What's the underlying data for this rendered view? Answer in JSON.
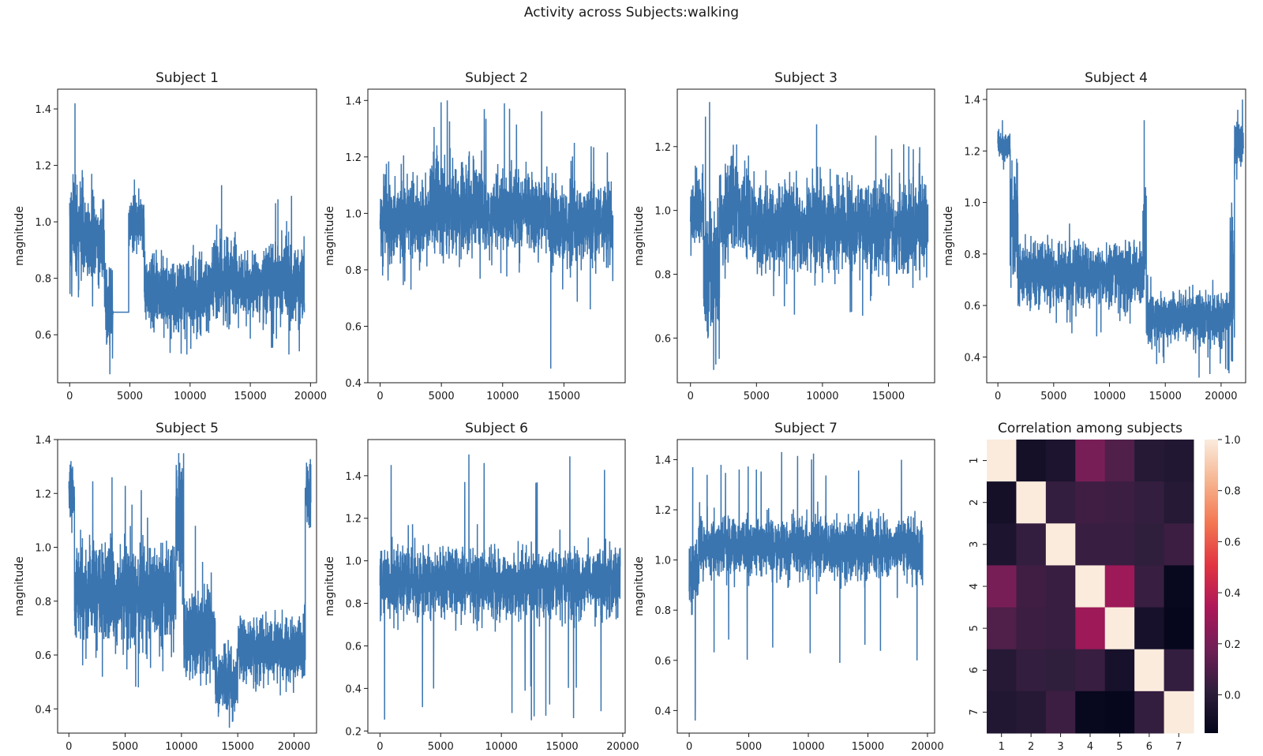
{
  "figure_title": "Activity across Subjects:walking",
  "line_color": "#3a75b0",
  "chart_data": [
    {
      "type": "line",
      "title": "Subject 1",
      "ylabel": "magnitude",
      "xlim": [
        -1000,
        20500
      ],
      "ylim": [
        0.43,
        1.47
      ],
      "xticks": [
        0,
        5000,
        10000,
        15000,
        20000
      ],
      "yticks": [
        0.6,
        0.8,
        1.0,
        1.2,
        1.4
      ],
      "ytick_format": "1",
      "n_points": 19500,
      "segments": [
        {
          "x": [
            0,
            1200
          ],
          "mean": 0.98,
          "spread": 0.09,
          "peak": 1.42
        },
        {
          "x": [
            1200,
            2900
          ],
          "mean": 0.92,
          "spread": 0.08,
          "peak": 1.17
        },
        {
          "x": [
            2900,
            3600
          ],
          "mean": 0.7,
          "spread": 0.08,
          "dip": 0.46
        },
        {
          "x": [
            3600,
            4900
          ],
          "constant": 0.68
        },
        {
          "x": [
            4900,
            6200
          ],
          "mean": 0.99,
          "spread": 0.05,
          "peak": 1.15
        },
        {
          "x": [
            6200,
            11800
          ],
          "mean": 0.75,
          "spread": 0.06,
          "dip": 0.53
        },
        {
          "x": [
            11800,
            14000
          ],
          "mean": 0.8,
          "spread": 0.07,
          "peak": 1.13
        },
        {
          "x": [
            14000,
            16000
          ],
          "mean": 0.78,
          "spread": 0.06
        },
        {
          "x": [
            16000,
            19500
          ],
          "mean": 0.78,
          "spread": 0.07,
          "peak": 1.08,
          "dip": 0.53
        }
      ]
    },
    {
      "type": "line",
      "title": "Subject 2",
      "ylabel": "magnitude",
      "xlim": [
        -1000,
        20000
      ],
      "ylim": [
        0.4,
        1.44
      ],
      "xticks": [
        0,
        5000,
        10000,
        15000
      ],
      "yticks": [
        0.4,
        0.6,
        0.8,
        1.0,
        1.2,
        1.4
      ],
      "ytick_format": "1",
      "n_points": 19000,
      "segments": [
        {
          "x": [
            0,
            4000
          ],
          "mean": 0.98,
          "spread": 0.07,
          "dip": 0.73
        },
        {
          "x": [
            4000,
            8000
          ],
          "mean": 1.02,
          "spread": 0.08,
          "peak": 1.4
        },
        {
          "x": [
            8000,
            13800
          ],
          "mean": 1.0,
          "spread": 0.07,
          "peak": 1.39
        },
        {
          "x": [
            13800,
            14000
          ],
          "mean": 0.95,
          "spread": 0.05,
          "dip": 0.45
        },
        {
          "x": [
            14000,
            19000
          ],
          "mean": 0.96,
          "spread": 0.07,
          "peak": 1.25,
          "dip": 0.66
        }
      ]
    },
    {
      "type": "line",
      "title": "Subject 3",
      "ylabel": "magnitude",
      "xlim": [
        -1000,
        18500
      ],
      "ylim": [
        0.46,
        1.38
      ],
      "xticks": [
        0,
        5000,
        10000,
        15000
      ],
      "yticks": [
        0.6,
        0.8,
        1.0,
        1.2
      ],
      "ytick_format": "1",
      "n_points": 18000,
      "segments": [
        {
          "x": [
            0,
            1000
          ],
          "mean": 1.0,
          "spread": 0.05,
          "peak": 1.14
        },
        {
          "x": [
            1000,
            2200
          ],
          "mean": 0.82,
          "spread": 0.1,
          "dip": 0.5,
          "peak": 1.34
        },
        {
          "x": [
            2200,
            4600
          ],
          "mean": 1.0,
          "spread": 0.07,
          "peak": 1.17
        },
        {
          "x": [
            4600,
            18000
          ],
          "mean": 0.95,
          "spread": 0.07,
          "peak": 1.27,
          "dip": 0.67
        }
      ]
    },
    {
      "type": "line",
      "title": "Subject 4",
      "ylabel": "magnitude",
      "xlim": [
        -1000,
        22200
      ],
      "ylim": [
        0.3,
        1.44
      ],
      "xticks": [
        0,
        5000,
        10000,
        15000,
        20000
      ],
      "yticks": [
        0.4,
        0.6,
        0.8,
        1.0,
        1.2,
        1.4
      ],
      "ytick_format": "1",
      "n_points": 22000,
      "segments": [
        {
          "x": [
            0,
            1100
          ],
          "mean": 1.22,
          "spread": 0.03,
          "peak": 1.32
        },
        {
          "x": [
            1100,
            1800
          ],
          "mean": 0.95,
          "spread": 0.1
        },
        {
          "x": [
            1800,
            13000
          ],
          "mean": 0.72,
          "spread": 0.06,
          "dip": 0.48
        },
        {
          "x": [
            13000,
            13300
          ],
          "mean": 0.9,
          "spread": 0.1,
          "peak": 1.32
        },
        {
          "x": [
            13300,
            20800
          ],
          "mean": 0.55,
          "spread": 0.05,
          "dip": 0.32
        },
        {
          "x": [
            20800,
            21200
          ],
          "mean": 0.7,
          "spread": 0.15,
          "peak": 1.0
        },
        {
          "x": [
            21200,
            22000
          ],
          "mean": 1.22,
          "spread": 0.05,
          "peak": 1.36
        }
      ]
    },
    {
      "type": "line",
      "title": "Subject 5",
      "ylabel": "magnitude",
      "xlim": [
        -1000,
        22000
      ],
      "ylim": [
        0.31,
        1.4
      ],
      "xticks": [
        0,
        5000,
        10000,
        15000,
        20000
      ],
      "yticks": [
        0.4,
        0.6,
        0.8,
        1.0,
        1.2,
        1.4
      ],
      "ytick_format": "1",
      "n_points": 21500,
      "segments": [
        {
          "x": [
            0,
            500
          ],
          "mean": 1.2,
          "spread": 0.05,
          "peak": 1.32
        },
        {
          "x": [
            500,
            9500
          ],
          "mean": 0.83,
          "spread": 0.09,
          "peak": 1.26,
          "dip": 0.48
        },
        {
          "x": [
            9500,
            10200
          ],
          "mean": 1.1,
          "spread": 0.12,
          "peak": 1.35
        },
        {
          "x": [
            10200,
            13000
          ],
          "mean": 0.68,
          "spread": 0.08,
          "peak": 1.08
        },
        {
          "x": [
            13000,
            15000
          ],
          "mean": 0.5,
          "spread": 0.06,
          "dip": 0.33
        },
        {
          "x": [
            15000,
            21000
          ],
          "mean": 0.62,
          "spread": 0.06,
          "dip": 0.45
        },
        {
          "x": [
            21000,
            21500
          ],
          "mean": 1.2,
          "spread": 0.06,
          "peak": 1.3
        }
      ]
    },
    {
      "type": "line",
      "title": "Subject 6",
      "ylabel": "magnitude",
      "xlim": [
        -1000,
        20200
      ],
      "ylim": [
        0.19,
        1.57
      ],
      "xticks": [
        0,
        5000,
        10000,
        15000,
        20000
      ],
      "yticks": [
        0.2,
        0.4,
        0.6,
        0.8,
        1.0,
        1.2,
        1.4
      ],
      "ytick_format": "1",
      "n_points": 19800,
      "segments": [
        {
          "x": [
            0,
            19800
          ],
          "mean": 0.9,
          "spread": 0.08,
          "peak": 1.5,
          "dip": 0.25
        }
      ]
    },
    {
      "type": "line",
      "title": "Subject 7",
      "ylabel": "magnitude",
      "xlim": [
        -1000,
        20600
      ],
      "ylim": [
        0.31,
        1.48
      ],
      "xticks": [
        0,
        5000,
        10000,
        15000,
        20000
      ],
      "yticks": [
        0.4,
        0.6,
        0.8,
        1.0,
        1.2,
        1.4
      ],
      "ytick_format": "1",
      "n_points": 19600,
      "segments": [
        {
          "x": [
            0,
            800
          ],
          "mean": 0.95,
          "spread": 0.07,
          "peak": 1.37,
          "dip": 0.36
        },
        {
          "x": [
            800,
            19600
          ],
          "mean": 1.05,
          "spread": 0.06,
          "peak": 1.43,
          "dip": 0.59
        }
      ]
    },
    {
      "type": "heatmap",
      "title": "Correlation among subjects",
      "labels": [
        "1",
        "2",
        "3",
        "4",
        "5",
        "6",
        "7"
      ],
      "vmin": -0.15,
      "vmax": 1.0,
      "colorbar_ticks": [
        0.0,
        0.2,
        0.4,
        0.6,
        0.8,
        1.0
      ],
      "colorscale": [
        "#03051a",
        "#2e1e3c",
        "#701f57",
        "#ad1759",
        "#e13342",
        "#f37651",
        "#f6b48f",
        "#faebdd"
      ],
      "matrix": [
        [
          1.0,
          -0.08,
          -0.05,
          0.2,
          0.1,
          -0.02,
          -0.03
        ],
        [
          -0.08,
          1.0,
          0.03,
          0.06,
          0.05,
          0.03,
          -0.02
        ],
        [
          -0.05,
          0.03,
          1.0,
          0.04,
          0.04,
          0.02,
          0.05
        ],
        [
          0.2,
          0.06,
          0.04,
          1.0,
          0.3,
          0.04,
          -0.13
        ],
        [
          0.1,
          0.05,
          0.04,
          0.3,
          1.0,
          -0.07,
          -0.14
        ],
        [
          -0.02,
          0.03,
          0.02,
          0.04,
          -0.07,
          1.0,
          0.03
        ],
        [
          -0.03,
          -0.02,
          0.05,
          -0.13,
          -0.14,
          0.03,
          1.0
        ]
      ]
    }
  ]
}
